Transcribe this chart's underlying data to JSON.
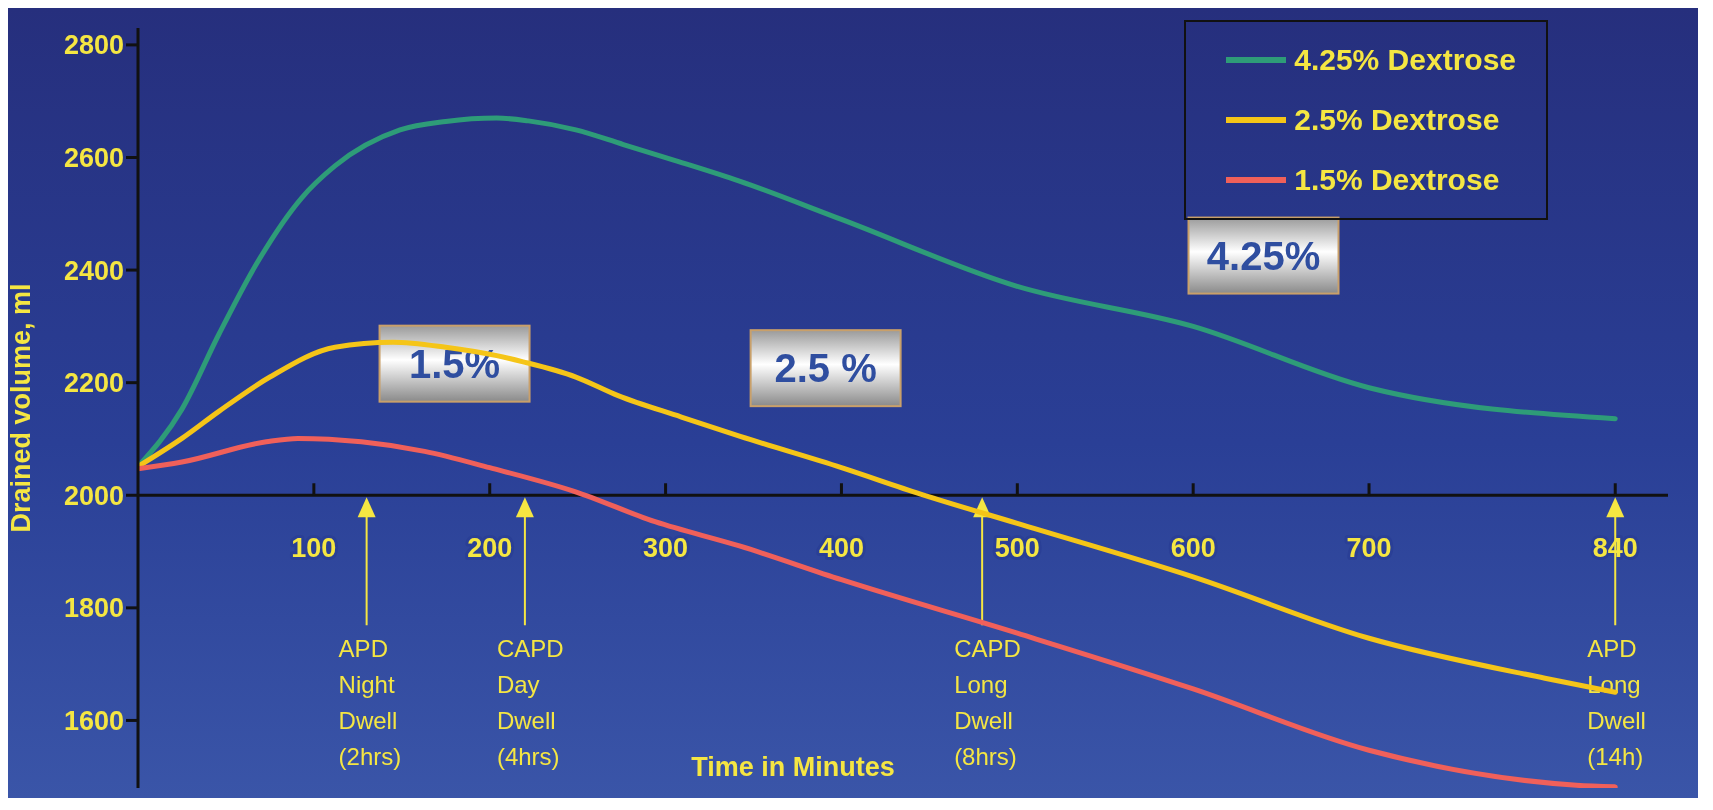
{
  "chart_data": {
    "type": "line",
    "ylabel": "Drained volume, ml",
    "xlim": [
      0,
      870
    ],
    "ylim": [
      1480,
      2830
    ],
    "xticks": [
      100,
      200,
      300,
      400,
      500,
      600,
      700,
      840
    ],
    "yticks": [
      1600,
      1800,
      2000,
      2200,
      2400,
      2600,
      2800
    ],
    "legend": "top right",
    "marker": "none",
    "line_style": "solid",
    "series": [
      {
        "name": "4.25% Dextrose",
        "color": "#2e9c78",
        "x": [
          0,
          25,
          46,
          67,
          93,
          112,
          149,
          175,
          204,
          222,
          249,
          276,
          306,
          342,
          400,
          499,
          600,
          700,
          840
        ],
        "values": [
          2051,
          2153,
          2286,
          2409,
          2528,
          2585,
          2649,
          2664,
          2670,
          2665,
          2649,
          2623,
          2594,
          2558,
          2490,
          2372,
          2300,
          2191,
          2136
        ]
      },
      {
        "name": "2.5% Dextrose",
        "color": "#f5c518",
        "x": [
          0,
          25,
          46,
          75,
          112,
          145,
          175,
          204,
          219,
          249,
          273,
          309,
          342,
          400,
          445,
          500,
          600,
          700,
          800,
          840
        ],
        "values": [
          2051,
          2101,
          2149,
          2210,
          2263,
          2272,
          2263,
          2248,
          2237,
          2210,
          2177,
          2139,
          2105,
          2049,
          2002,
          1950,
          1855,
          1746,
          1675,
          1650
        ]
      },
      {
        "name": "1.5% Dextrose",
        "color": "#f0605a",
        "x": [
          0,
          25,
          73,
          91,
          127,
          163,
          200,
          248,
          294,
          342,
          400,
          500,
          600,
          700,
          818,
          840
        ],
        "values": [
          2047,
          2059,
          2095,
          2101,
          2095,
          2078,
          2049,
          2007,
          1953,
          1910,
          1850,
          1755,
          1656,
          1547,
          1485,
          1482
        ]
      }
    ],
    "ref_lines": [
      {
        "axis": "x",
        "value": 130,
        "label": "APD Night Dwell (2hrs)"
      },
      {
        "axis": "x",
        "value": 220,
        "label": "CAPD Day Dwell (4hrs)"
      },
      {
        "axis": "x",
        "value": 480,
        "label": "CAPD Long Dwell (8hrs)"
      },
      {
        "axis": "x",
        "value": 840,
        "label": "APD Long Dwell (14h)"
      }
    ],
    "annotations": [
      {
        "text": "1.5%",
        "x": 180,
        "y": 2065
      },
      {
        "text": "2.5 %",
        "x": 391,
        "y": 2057
      },
      {
        "text": "4.25%",
        "x": 640,
        "y": 2257
      },
      "Time in Minutes"
    ]
  }
}
